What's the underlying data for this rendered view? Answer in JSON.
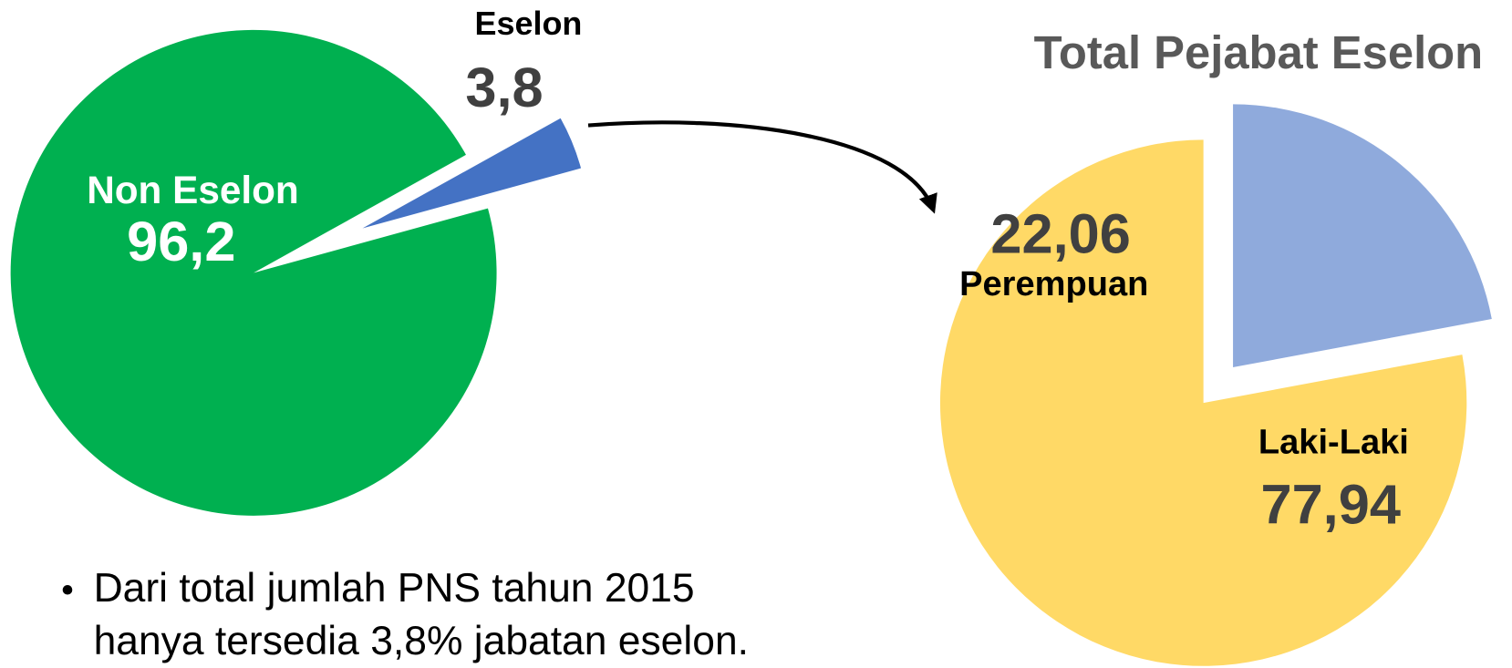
{
  "chart_data": [
    {
      "type": "pie",
      "categories": [
        "Non Eselon",
        "Eselon"
      ],
      "values": [
        96.2,
        3.8
      ],
      "value_labels": [
        "96,2",
        "3,8"
      ],
      "colors": [
        "#00b050",
        "#4472c4"
      ]
    },
    {
      "type": "pie",
      "title": "Total Pejabat Eselon",
      "categories": [
        "Perempuan",
        "Laki-Laki"
      ],
      "values": [
        22.06,
        77.94
      ],
      "value_labels": [
        "22,06",
        "77,94"
      ],
      "colors": [
        "#8faadc",
        "#ffd966"
      ]
    }
  ],
  "notes": [
    "Dari total jumlah PNS tahun 2015",
    "hanya tersedia 3,8% jabatan eselon."
  ]
}
